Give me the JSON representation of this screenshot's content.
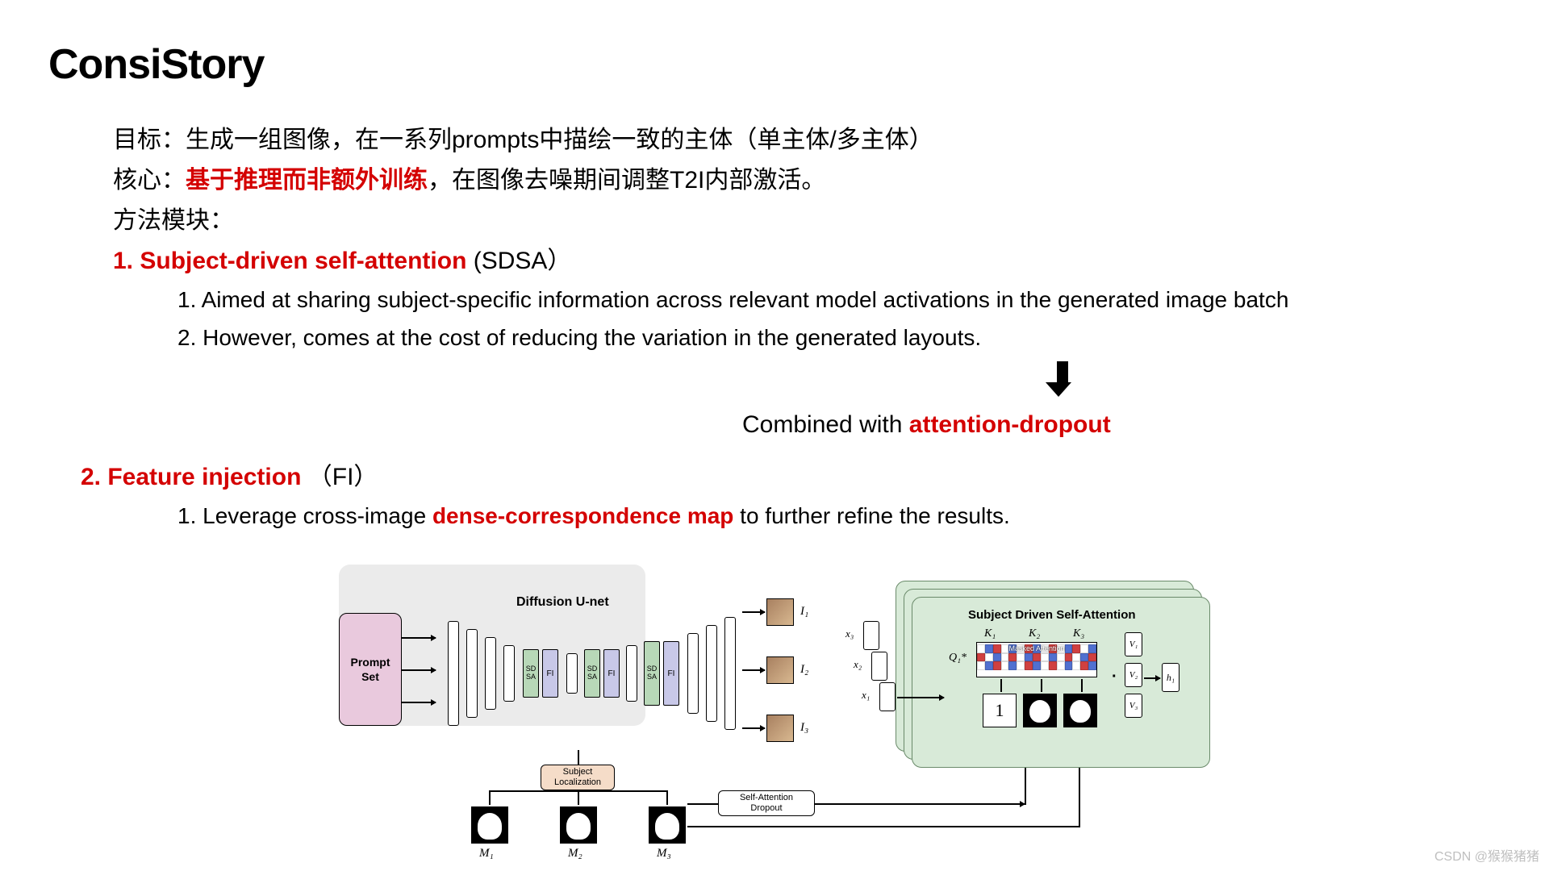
{
  "title": "ConsiStory",
  "lines": {
    "goal_label": "目标：",
    "goal_text": "生成一组图像，在一系列prompts中描绘一致的主体（单主体/多主体）",
    "core_label": "核心：",
    "core_red": "基于推理而非额外训练",
    "core_rest": "，在图像去噪期间调整T2I内部激活。",
    "method_label": "方法模块："
  },
  "section1": {
    "num": "1.  ",
    "title": "Subject-driven self-attention",
    "suffix": " (SDSA）",
    "items": [
      "1.  Aimed at sharing subject-specific information across relevant model activations in the generated image batch",
      "2.  However,  comes at the cost of reducing the variation in the generated layouts."
    ],
    "combined_prefix": "Combined with ",
    "combined_red": "attention-dropout"
  },
  "section2": {
    "num": " 2. ",
    "title": "Feature injection",
    "suffix": " （FI）",
    "item_prefix": "1.  Leverage cross-image ",
    "item_red": "dense-correspondence map",
    "item_suffix": " to further refine the results."
  },
  "diagram": {
    "prompt_set": "Prompt\nSet",
    "unet_title": "Diffusion U-net",
    "sdsa_label": "SD\nSA",
    "fi_label": "FI",
    "sub_loc": "Subject\nLocalization",
    "sa_dropout": "Self-Attention\nDropout",
    "i_labels": [
      "I₁",
      "I₂",
      "I₃"
    ],
    "m_labels": [
      "M₁",
      "M₂",
      "M₃"
    ],
    "sdsa_title": "Subject Driven Self-Attention",
    "x_labels": [
      "x₃",
      "x₂",
      "x₁"
    ],
    "k_labels": [
      "K₁",
      "K₂",
      "K₃"
    ],
    "q_label": "Q₁*",
    "masked_attn": "Masked Attention",
    "v_labels": [
      "V₁",
      "V₂",
      "V₃"
    ],
    "h_label": "h₁",
    "one": "1",
    "colors": {
      "prompt_bg": "#e9c9dd",
      "unet_bg": "#ebebeb",
      "sdsa_bg": "#b8d8b8",
      "fi_bg": "#c8c8e8",
      "subloc_bg": "#f5dcc8",
      "panel_bg": "#d8ead8",
      "attn_cells": [
        "#ffffff",
        "#5070d0",
        "#d04040",
        "#ffffff",
        "#5070d0",
        "#ffffff",
        "#d04040",
        "#5070d0",
        "#ffffff",
        "#d04040",
        "#ffffff",
        "#5070d0",
        "#d04040",
        "#ffffff",
        "#5070d0",
        "#d04040",
        "#ffffff",
        "#5070d0",
        "#ffffff",
        "#d04040",
        "#ffffff",
        "#5070d0",
        "#d04040",
        "#ffffff",
        "#5070d0",
        "#ffffff",
        "#d04040",
        "#ffffff",
        "#5070d0",
        "#d04040",
        "#ffffff",
        "#5070d0",
        "#d04040",
        "#ffffff",
        "#5070d0",
        "#ffffff",
        "#d04040",
        "#5070d0",
        "#ffffff",
        "#d04040",
        "#ffffff",
        "#5070d0",
        "#ffffff",
        "#d04040",
        "#5070d0"
      ]
    }
  },
  "watermark": "CSDN @猴猴猪猪"
}
